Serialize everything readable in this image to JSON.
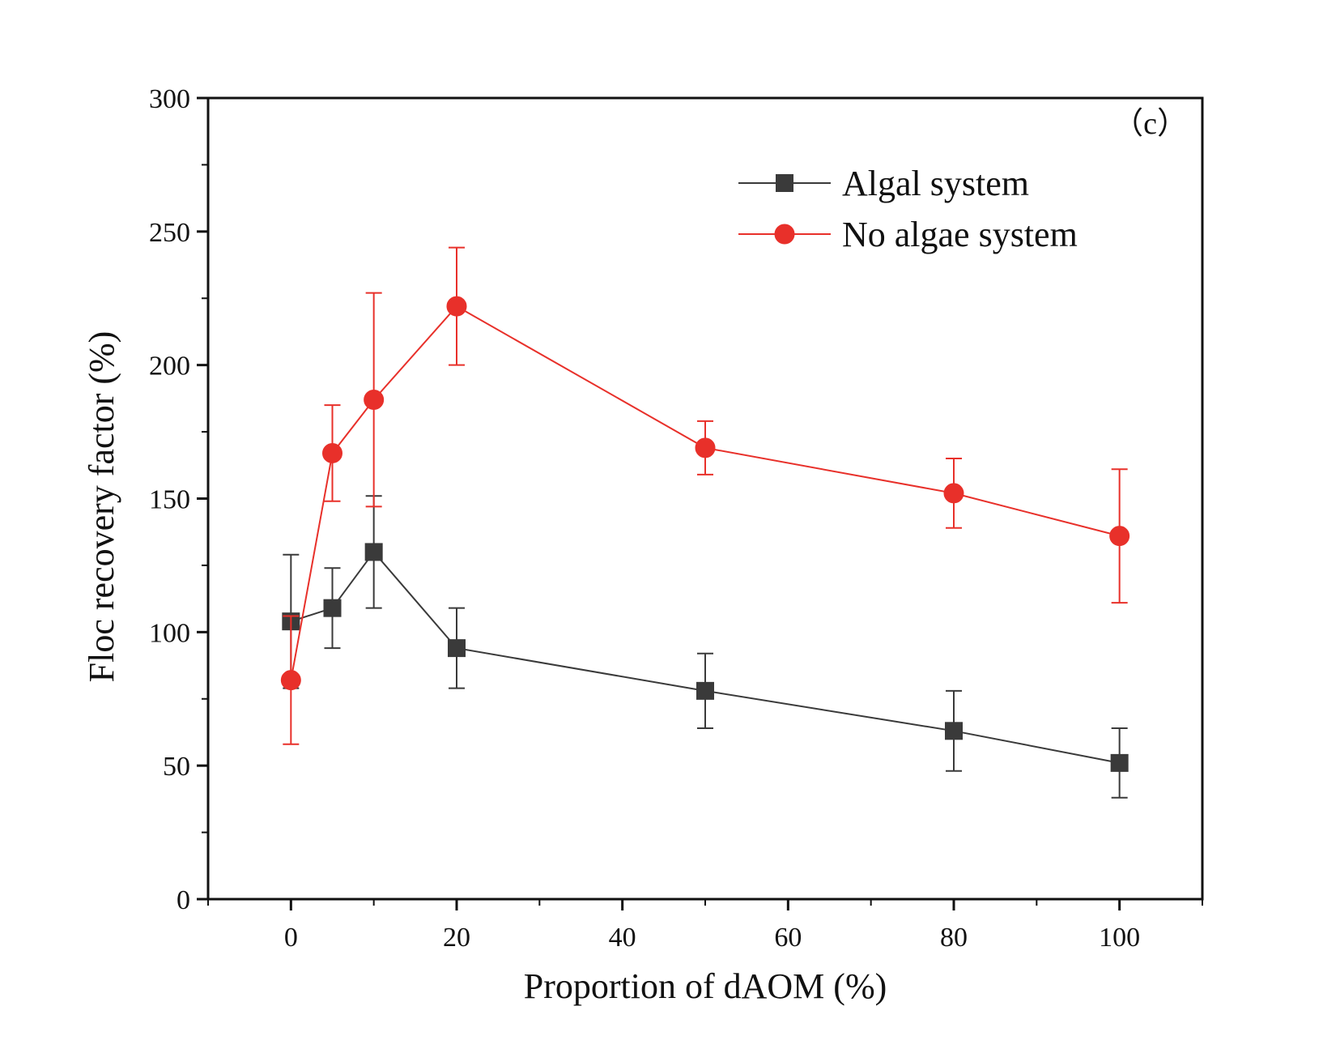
{
  "chart_data": {
    "type": "line",
    "panel_label": "（c）",
    "xlabel": "Proportion of dAOM (%)",
    "ylabel": "Floc recovery factor (%)",
    "xlim": [
      -10,
      110
    ],
    "ylim": [
      0,
      300
    ],
    "x_ticks": [
      0,
      20,
      40,
      60,
      80,
      100
    ],
    "y_ticks": [
      0,
      50,
      100,
      150,
      200,
      250,
      300
    ],
    "legend_position": "top-right",
    "series": [
      {
        "name": "Algal system",
        "color": "#3a3a3a",
        "marker": "square",
        "x": [
          0,
          5,
          10,
          20,
          50,
          80,
          100
        ],
        "y": [
          104,
          109,
          130,
          94,
          78,
          63,
          51
        ],
        "err": [
          25,
          15,
          21,
          15,
          14,
          15,
          13
        ]
      },
      {
        "name": "No algae system",
        "color": "#e8302a",
        "marker": "circle",
        "x": [
          0,
          5,
          10,
          20,
          50,
          80,
          100
        ],
        "y": [
          82,
          167,
          187,
          222,
          169,
          152,
          136
        ],
        "err": [
          24,
          18,
          40,
          22,
          10,
          13,
          25
        ]
      }
    ]
  }
}
